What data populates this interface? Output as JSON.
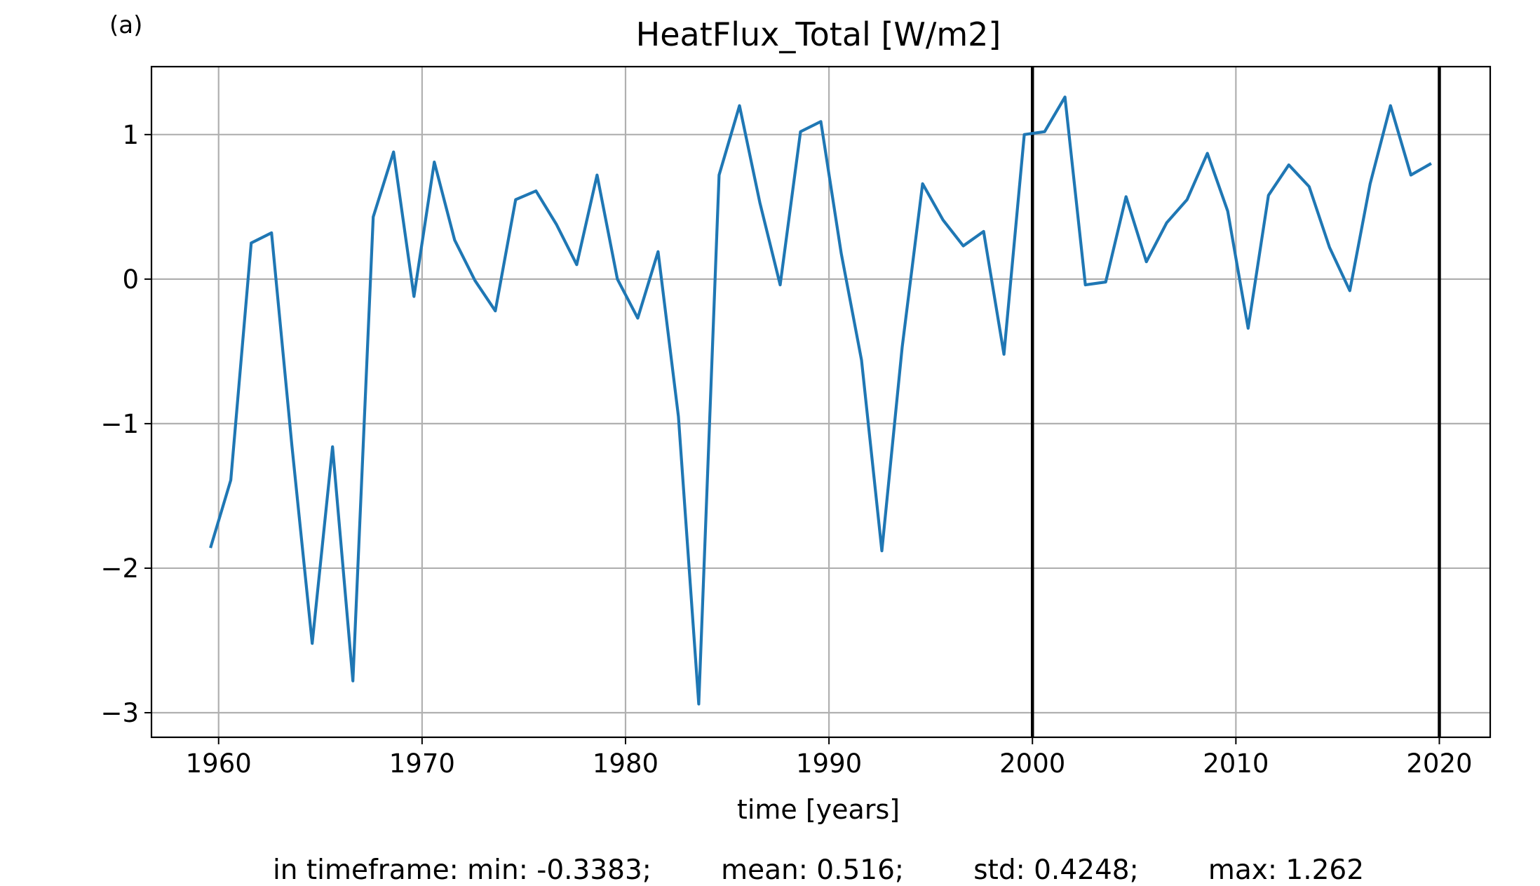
{
  "panel_label": "(a)",
  "chart_data": {
    "type": "line",
    "title": "HeatFlux_Total [W/m2]",
    "xlabel": "time [years]",
    "ylabel": "",
    "xlim": [
      1956.7,
      2022.5
    ],
    "ylim": [
      -3.17,
      1.47
    ],
    "xticks": [
      1960,
      1970,
      1980,
      1990,
      2000,
      2010,
      2020
    ],
    "xtick_labels": [
      "1960",
      "1970",
      "1980",
      "1990",
      "2000",
      "2010",
      "2020"
    ],
    "yticks": [
      1,
      0,
      -1,
      -2,
      -3
    ],
    "ytick_labels": [
      "1",
      "0",
      "−1",
      "−2",
      "−3"
    ],
    "grid": true,
    "vertical_lines": [
      2000,
      2020
    ],
    "vertical_line_color": "#000000",
    "series": [
      {
        "color": "#1f77b4",
        "x": [
          1959.6,
          1960.6,
          1961.6,
          1962.6,
          1963.6,
          1964.6,
          1965.6,
          1966.6,
          1967.6,
          1968.6,
          1969.6,
          1970.6,
          1971.6,
          1972.6,
          1973.6,
          1974.6,
          1975.6,
          1976.6,
          1977.6,
          1978.6,
          1979.6,
          1980.6,
          1981.6,
          1982.6,
          1983.6,
          1984.6,
          1985.6,
          1986.6,
          1987.6,
          1988.6,
          1989.6,
          1990.6,
          1991.6,
          1992.6,
          1993.6,
          1994.6,
          1995.6,
          1996.6,
          1997.6,
          1998.6,
          1999.6,
          2000.6,
          2001.6,
          2002.6,
          2003.6,
          2004.6,
          2005.6,
          2006.6,
          2007.6,
          2008.6,
          2009.6,
          2010.6,
          2011.6,
          2012.6,
          2013.6,
          2014.6,
          2015.6,
          2016.6,
          2017.6,
          2018.6,
          2019.6
        ],
        "values": [
          -1.86,
          -1.39,
          0.25,
          0.32,
          -1.15,
          -2.52,
          -1.16,
          -2.78,
          0.43,
          0.88,
          -0.12,
          0.81,
          0.27,
          -0.01,
          -0.22,
          0.55,
          0.61,
          0.38,
          0.1,
          0.72,
          0.0,
          -0.27,
          0.19,
          -0.95,
          -2.94,
          0.72,
          1.2,
          0.53,
          -0.04,
          1.02,
          1.09,
          0.18,
          -0.56,
          -1.88,
          -0.47,
          0.66,
          0.41,
          0.23,
          0.33,
          -0.52,
          1.0,
          1.02,
          1.26,
          -0.04,
          -0.02,
          0.57,
          0.12,
          0.39,
          0.55,
          0.87,
          0.47,
          -0.34,
          0.58,
          0.79,
          0.64,
          0.22,
          -0.08,
          0.66,
          1.2,
          0.72,
          0.8
        ]
      }
    ],
    "annotation": "in timeframe: min: -0.3383;        mean: 0.516;        std: 0.4248;        max: 1.262"
  }
}
